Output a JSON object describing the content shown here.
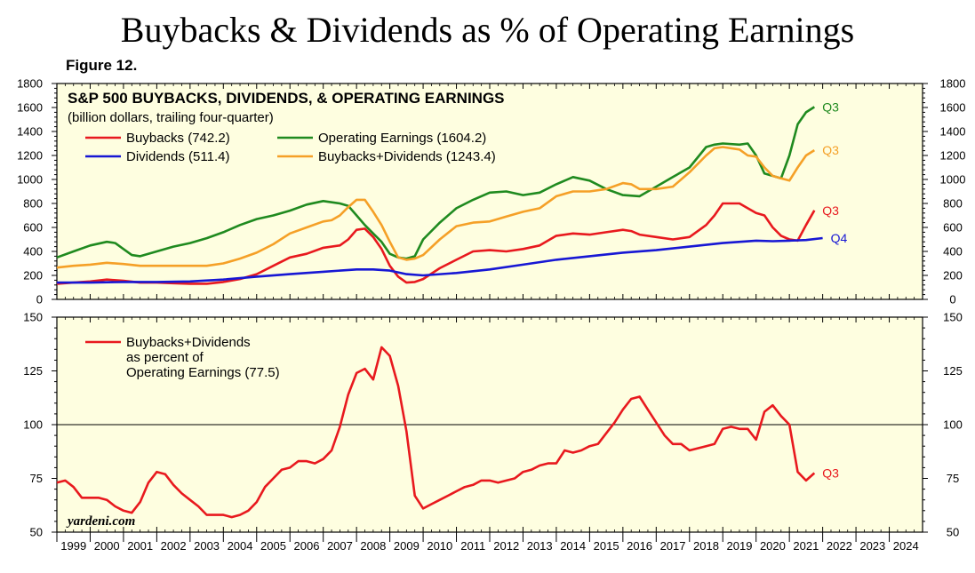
{
  "title": "Buybacks & Dividends as % of Operating Earnings",
  "figure_label": "Figure 12.",
  "credit": "yardeni.com",
  "colors": {
    "panel_bg": "#fefee0",
    "buybacks": "#e8191e",
    "dividends": "#1717d4",
    "earnings": "#1f8a1f",
    "buybacks_dividends": "#f5a027"
  },
  "chart_data": [
    {
      "type": "line",
      "title": "S&P 500 BUYBACKS, DIVIDENDS, & OPERATING EARNINGS",
      "subtitle": "(billion dollars, trailing four-quarter)",
      "ylim": [
        0,
        1800
      ],
      "y_ticks": [
        0,
        200,
        400,
        600,
        800,
        1000,
        1200,
        1400,
        1600,
        1800
      ],
      "xlim": [
        1999,
        2025
      ],
      "series": [
        {
          "name": "Buybacks (742.2)",
          "color_key": "buybacks",
          "end_label": "Q3",
          "x": [
            1999.0,
            1999.5,
            2000.0,
            2000.5,
            2001.0,
            2001.5,
            2002.0,
            2002.5,
            2003.0,
            2003.5,
            2004.0,
            2004.5,
            2005.0,
            2005.5,
            2006.0,
            2006.5,
            2007.0,
            2007.5,
            2007.75,
            2008.0,
            2008.25,
            2008.5,
            2008.75,
            2009.0,
            2009.25,
            2009.5,
            2009.75,
            2010.0,
            2010.5,
            2011.0,
            2011.5,
            2012.0,
            2012.5,
            2013.0,
            2013.5,
            2014.0,
            2014.5,
            2015.0,
            2015.5,
            2016.0,
            2016.25,
            2016.5,
            2017.0,
            2017.5,
            2018.0,
            2018.5,
            2018.75,
            2019.0,
            2019.5,
            2019.75,
            2020.0,
            2020.25,
            2020.5,
            2020.75,
            2021.0,
            2021.25,
            2021.5,
            2021.75
          ],
          "values": [
            130,
            140,
            150,
            165,
            155,
            140,
            140,
            135,
            130,
            130,
            145,
            170,
            210,
            280,
            350,
            380,
            430,
            450,
            500,
            580,
            590,
            520,
            420,
            280,
            190,
            140,
            145,
            170,
            260,
            330,
            400,
            410,
            400,
            420,
            450,
            530,
            550,
            540,
            560,
            580,
            570,
            540,
            520,
            500,
            520,
            620,
            700,
            800,
            800,
            760,
            720,
            700,
            600,
            530,
            500,
            490,
            620,
            742.2
          ]
        },
        {
          "name": "Dividends (511.4)",
          "color_key": "dividends",
          "end_label": "Q4",
          "x": [
            1999.0,
            2000.0,
            2001.0,
            2002.0,
            2003.0,
            2004.0,
            2005.0,
            2006.0,
            2007.0,
            2008.0,
            2008.5,
            2009.0,
            2009.5,
            2010.0,
            2011.0,
            2012.0,
            2013.0,
            2014.0,
            2015.0,
            2016.0,
            2017.0,
            2018.0,
            2019.0,
            2020.0,
            2020.5,
            2021.0,
            2021.5,
            2022.0
          ],
          "values": [
            140,
            140,
            145,
            145,
            150,
            165,
            190,
            210,
            230,
            250,
            250,
            240,
            210,
            200,
            220,
            250,
            290,
            330,
            360,
            390,
            410,
            440,
            470,
            490,
            485,
            490,
            495,
            511.4
          ]
        },
        {
          "name": "Operating Earnings (1604.2)",
          "color_key": "earnings",
          "end_label": "Q3",
          "x": [
            1999.0,
            1999.5,
            2000.0,
            2000.5,
            2000.75,
            2001.0,
            2001.25,
            2001.5,
            2002.0,
            2002.5,
            2003.0,
            2003.5,
            2004.0,
            2004.5,
            2005.0,
            2005.5,
            2006.0,
            2006.5,
            2007.0,
            2007.5,
            2007.75,
            2008.0,
            2008.25,
            2008.5,
            2008.75,
            2009.0,
            2009.25,
            2009.5,
            2009.75,
            2010.0,
            2010.5,
            2011.0,
            2011.5,
            2012.0,
            2012.5,
            2013.0,
            2013.5,
            2014.0,
            2014.5,
            2015.0,
            2015.5,
            2016.0,
            2016.5,
            2017.0,
            2017.5,
            2018.0,
            2018.5,
            2018.75,
            2019.0,
            2019.5,
            2019.75,
            2020.0,
            2020.25,
            2020.5,
            2020.75,
            2021.0,
            2021.25,
            2021.5,
            2021.75
          ],
          "values": [
            350,
            400,
            450,
            480,
            470,
            420,
            370,
            360,
            400,
            440,
            470,
            510,
            560,
            620,
            670,
            700,
            740,
            790,
            820,
            800,
            780,
            700,
            620,
            550,
            480,
            380,
            350,
            340,
            360,
            500,
            640,
            760,
            830,
            890,
            900,
            870,
            890,
            960,
            1020,
            990,
            920,
            870,
            860,
            940,
            1020,
            1100,
            1270,
            1290,
            1300,
            1290,
            1300,
            1200,
            1050,
            1030,
            1010,
            1200,
            1460,
            1560,
            1604.2
          ]
        },
        {
          "name": "Buybacks+Dividends (1243.4)",
          "color_key": "buybacks_dividends",
          "end_label": "Q3",
          "x": [
            1999.0,
            1999.5,
            2000.0,
            2000.5,
            2001.0,
            2001.5,
            2002.0,
            2002.5,
            2003.0,
            2003.5,
            2004.0,
            2004.5,
            2005.0,
            2005.5,
            2006.0,
            2006.5,
            2007.0,
            2007.25,
            2007.5,
            2007.75,
            2008.0,
            2008.25,
            2008.5,
            2008.75,
            2009.0,
            2009.25,
            2009.5,
            2009.75,
            2010.0,
            2010.5,
            2011.0,
            2011.5,
            2012.0,
            2012.5,
            2013.0,
            2013.5,
            2014.0,
            2014.5,
            2015.0,
            2015.5,
            2016.0,
            2016.25,
            2016.5,
            2017.0,
            2017.5,
            2018.0,
            2018.5,
            2018.75,
            2019.0,
            2019.5,
            2019.75,
            2020.0,
            2020.25,
            2020.5,
            2020.75,
            2021.0,
            2021.25,
            2021.5,
            2021.75
          ],
          "values": [
            265,
            280,
            290,
            305,
            295,
            280,
            280,
            280,
            280,
            280,
            300,
            340,
            390,
            460,
            550,
            600,
            650,
            660,
            700,
            770,
            830,
            830,
            730,
            620,
            480,
            350,
            330,
            340,
            370,
            500,
            610,
            640,
            650,
            690,
            730,
            760,
            860,
            900,
            900,
            920,
            970,
            960,
            920,
            920,
            940,
            1060,
            1200,
            1260,
            1270,
            1250,
            1200,
            1190,
            1100,
            1030,
            1010,
            990,
            1100,
            1200,
            1243.4
          ]
        }
      ]
    },
    {
      "type": "line",
      "ylim": [
        50,
        150
      ],
      "y_ticks": [
        50,
        75,
        100,
        125,
        150
      ],
      "reference_line": 100,
      "xlim": [
        1999,
        2025
      ],
      "x_tick_labels": [
        "1999",
        "2000",
        "2001",
        "2002",
        "2003",
        "2004",
        "2005",
        "2006",
        "2007",
        "2008",
        "2009",
        "2010",
        "2011",
        "2012",
        "2013",
        "2014",
        "2015",
        "2016",
        "2017",
        "2018",
        "2019",
        "2020",
        "2021",
        "2022",
        "2023",
        "2024"
      ],
      "legend_lines": [
        "Buybacks+Dividends",
        "as percent of",
        "Operating Earnings (77.5)"
      ],
      "series": [
        {
          "name": "Buybacks+Dividends as percent of Operating Earnings (77.5)",
          "color_key": "buybacks",
          "end_label": "Q3",
          "x": [
            1999.0,
            1999.25,
            1999.5,
            1999.75,
            2000.0,
            2000.25,
            2000.5,
            2000.75,
            2001.0,
            2001.25,
            2001.5,
            2001.75,
            2002.0,
            2002.25,
            2002.5,
            2002.75,
            2003.0,
            2003.25,
            2003.5,
            2003.75,
            2004.0,
            2004.25,
            2004.5,
            2004.75,
            2005.0,
            2005.25,
            2005.5,
            2005.75,
            2006.0,
            2006.25,
            2006.5,
            2006.75,
            2007.0,
            2007.25,
            2007.5,
            2007.75,
            2008.0,
            2008.25,
            2008.5,
            2008.75,
            2009.0,
            2009.25,
            2009.5,
            2009.75,
            2010.0,
            2010.25,
            2010.5,
            2010.75,
            2011.0,
            2011.25,
            2011.5,
            2011.75,
            2012.0,
            2012.25,
            2012.5,
            2012.75,
            2013.0,
            2013.25,
            2013.5,
            2013.75,
            2014.0,
            2014.25,
            2014.5,
            2014.75,
            2015.0,
            2015.25,
            2015.5,
            2015.75,
            2016.0,
            2016.25,
            2016.5,
            2016.75,
            2017.0,
            2017.25,
            2017.5,
            2017.75,
            2018.0,
            2018.25,
            2018.5,
            2018.75,
            2019.0,
            2019.25,
            2019.5,
            2019.75,
            2020.0,
            2020.25,
            2020.5,
            2020.75,
            2021.0,
            2021.25,
            2021.5,
            2021.75
          ],
          "values": [
            73,
            74,
            71,
            66,
            66,
            66,
            65,
            62,
            60,
            59,
            64,
            73,
            78,
            77,
            72,
            68,
            65,
            62,
            58,
            58,
            58,
            57,
            58,
            60,
            64,
            71,
            75,
            79,
            80,
            83,
            83,
            82,
            84,
            88,
            99,
            114,
            124,
            126,
            121,
            136,
            132,
            118,
            97,
            67,
            61,
            63,
            65,
            67,
            69,
            71,
            72,
            74,
            74,
            73,
            74,
            75,
            78,
            79,
            81,
            82,
            82,
            88,
            87,
            88,
            90,
            91,
            96,
            101,
            107,
            112,
            113,
            107,
            101,
            95,
            91,
            91,
            88,
            89,
            90,
            91,
            98,
            99,
            98,
            98,
            93,
            106,
            109,
            104,
            100,
            78,
            74,
            77.5
          ]
        }
      ]
    }
  ]
}
